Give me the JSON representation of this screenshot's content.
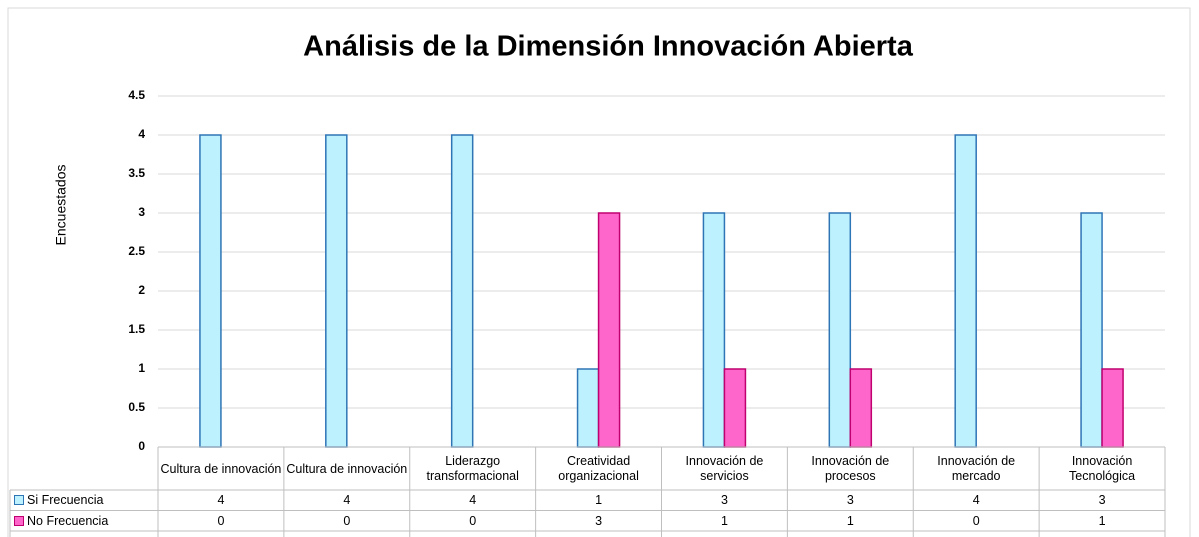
{
  "chart_data": {
    "type": "bar",
    "title": "Análisis de la Dimensión Innovación Abierta",
    "y_label": "Encuestados",
    "categories": [
      "Cultura de innovación",
      "Cultura de innovación",
      "Liderazgo transformacional",
      "Creatividad organizacional",
      "Innovación de servicios",
      "Innovación de procesos",
      "Innovación de mercado",
      "Innovación Tecnológica"
    ],
    "series": [
      {
        "name": "Si Frecuencia",
        "color": "#bdf1fd",
        "values": [
          4,
          4,
          4,
          1,
          3,
          3,
          4,
          3
        ]
      },
      {
        "name": "No Frecuencia",
        "color": "#ff66cc",
        "values": [
          0,
          0,
          0,
          3,
          1,
          1,
          0,
          1
        ]
      }
    ],
    "ylim": [
      0,
      4.5
    ],
    "yticks": [
      0,
      0.5,
      1,
      1.5,
      2,
      2.5,
      3,
      3.5,
      4,
      4.5
    ],
    "grid": true,
    "data_table": true
  }
}
